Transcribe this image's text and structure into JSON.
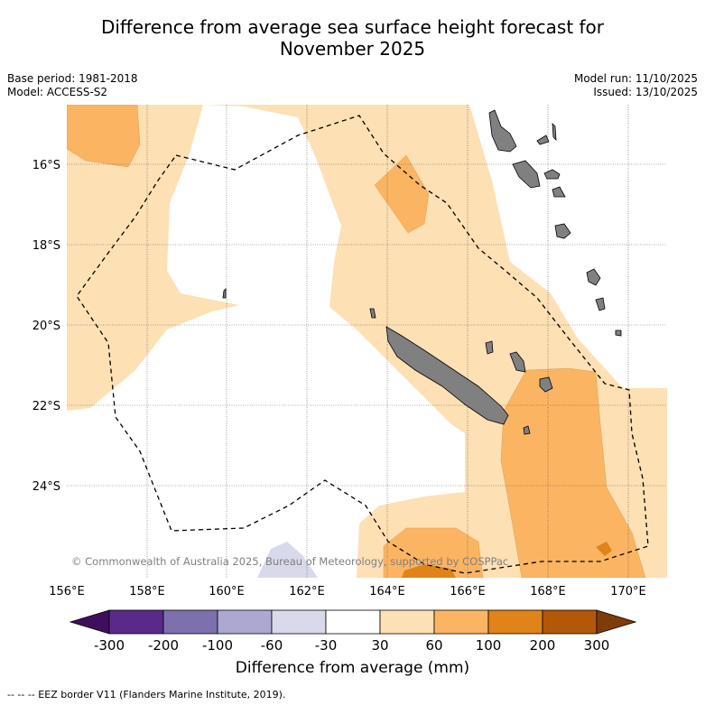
{
  "title": {
    "line1": "Difference from average sea surface height forecast for",
    "line2": "November 2025"
  },
  "metadata": {
    "base_period": "Base period: 1981-2018",
    "model": "Model: ACCESS-S2",
    "model_run": "Model run: 11/10/2025",
    "issued": "Issued: 13/10/2025"
  },
  "map": {
    "lon_labels": [
      "156°E",
      "158°E",
      "160°E",
      "162°E",
      "164°E",
      "166°E",
      "168°E",
      "170°E"
    ],
    "lat_labels": [
      "16°S",
      "18°S",
      "20°S",
      "22°S",
      "24°S"
    ],
    "copyright": "© Commonwealth of Australia 2025, Bureau of Meteorology, supported by COSPPac"
  },
  "colorbar": {
    "ticks": [
      "-300",
      "-200",
      "-100",
      "-60",
      "-30",
      "30",
      "60",
      "100",
      "200",
      "300"
    ],
    "colors": [
      "#3f0f5e",
      "#5a2a8a",
      "#7d70ac",
      "#ada8d0",
      "#d9d9ec",
      "#ffffff",
      "#fde0b4",
      "#fbb462",
      "#e08319",
      "#b35806",
      "#7f3b08"
    ],
    "title": "Difference from average (mm)"
  },
  "footnote": "--  --  -- EEZ border V11 (Flanders Marine Institute, 2019)."
}
